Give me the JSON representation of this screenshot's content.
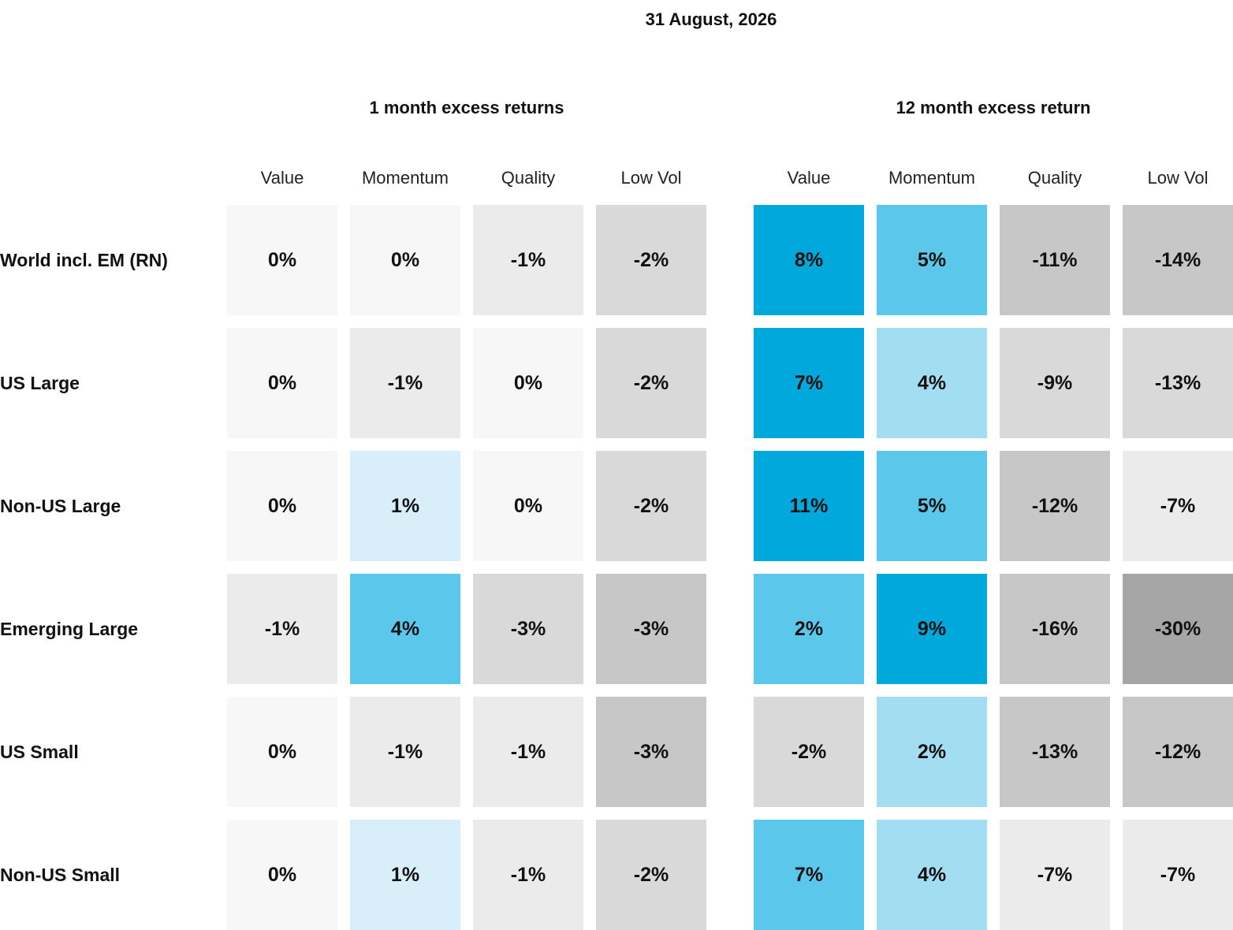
{
  "date": "31 August, 2026",
  "chart_data": {
    "type": "heatmap",
    "rows": [
      "World incl. EM (RN)",
      "US Large",
      "Non-US Large",
      "Emerging Large",
      "US Small",
      "Non-US Small"
    ],
    "groups": [
      {
        "title": "1 month excess returns",
        "columns": [
          "Value",
          "Momentum",
          "Quality",
          "Low Vol"
        ],
        "values": [
          [
            0,
            0,
            -1,
            -2
          ],
          [
            0,
            -1,
            0,
            -2
          ],
          [
            0,
            1,
            0,
            -2
          ],
          [
            -1,
            4,
            -3,
            -3
          ],
          [
            0,
            -1,
            -1,
            -3
          ],
          [
            0,
            1,
            -1,
            -2
          ]
        ],
        "labels": [
          [
            "0%",
            "0%",
            "-1%",
            "-2%"
          ],
          [
            "0%",
            "-1%",
            "0%",
            "-2%"
          ],
          [
            "0%",
            "1%",
            "0%",
            "-2%"
          ],
          [
            "-1%",
            "4%",
            "-3%",
            "-3%"
          ],
          [
            "0%",
            "-1%",
            "-1%",
            "-3%"
          ],
          [
            "0%",
            "1%",
            "-1%",
            "-2%"
          ]
        ],
        "colors": [
          [
            "#f7f7f7",
            "#f7f7f7",
            "#ebebeb",
            "#d9d9d9"
          ],
          [
            "#f7f7f7",
            "#ebebeb",
            "#f7f7f7",
            "#d9d9d9"
          ],
          [
            "#f7f7f7",
            "#d8eff9",
            "#f7f7f7",
            "#d9d9d9"
          ],
          [
            "#ebebeb",
            "#5bc8eb",
            "#d9d9d9",
            "#c7c7c7"
          ],
          [
            "#f7f7f7",
            "#ebebeb",
            "#ebebeb",
            "#c7c7c7"
          ],
          [
            "#f7f7f7",
            "#d8eff9",
            "#ebebeb",
            "#d9d9d9"
          ]
        ]
      },
      {
        "title": "12 month excess return",
        "columns": [
          "Value",
          "Momentum",
          "Quality",
          "Low Vol"
        ],
        "values": [
          [
            8,
            5,
            -11,
            -14
          ],
          [
            7,
            4,
            -9,
            -13
          ],
          [
            11,
            5,
            -12,
            -7
          ],
          [
            2,
            9,
            -16,
            -30
          ],
          [
            -2,
            2,
            -13,
            -12
          ],
          [
            7,
            4,
            -7,
            -7
          ]
        ],
        "labels": [
          [
            "8%",
            "5%",
            "-11%",
            "-14%"
          ],
          [
            "7%",
            "4%",
            "-9%",
            "-13%"
          ],
          [
            "11%",
            "5%",
            "-12%",
            "-7%"
          ],
          [
            "2%",
            "9%",
            "-16%",
            "-30%"
          ],
          [
            "-2%",
            "2%",
            "-13%",
            "-12%"
          ],
          [
            "7%",
            "4%",
            "-7%",
            "-7%"
          ]
        ],
        "colors": [
          [
            "#00a8dc",
            "#5bc8eb",
            "#c7c7c7",
            "#c7c7c7"
          ],
          [
            "#00a8dc",
            "#a3ddf2",
            "#d9d9d9",
            "#d9d9d9"
          ],
          [
            "#00a8dc",
            "#5bc8eb",
            "#c7c7c7",
            "#ebebeb"
          ],
          [
            "#5bc8eb",
            "#00a8dc",
            "#c7c7c7",
            "#a6a6a6"
          ],
          [
            "#d9d9d9",
            "#a3ddf2",
            "#c7c7c7",
            "#c7c7c7"
          ],
          [
            "#5bc8eb",
            "#a3ddf2",
            "#ebebeb",
            "#ebebeb"
          ]
        ]
      }
    ]
  }
}
